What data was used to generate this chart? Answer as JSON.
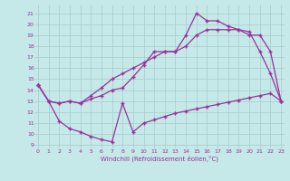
{
  "background_color": "#c5e8e8",
  "grid_color": "#a8cccc",
  "line_color": "#993399",
  "marker": "+",
  "xlabel": "Windchill (Refroidissement éolien,°C)",
  "ylim_min": 8.7,
  "ylim_max": 21.7,
  "xlim_min": -0.3,
  "xlim_max": 23.3,
  "ytick_vals": [
    9,
    10,
    11,
    12,
    13,
    14,
    15,
    16,
    17,
    18,
    19,
    20,
    21
  ],
  "xtick_vals": [
    0,
    1,
    2,
    3,
    4,
    5,
    6,
    7,
    8,
    9,
    10,
    11,
    12,
    13,
    14,
    15,
    16,
    17,
    18,
    19,
    20,
    21,
    22,
    23
  ],
  "line1_x": [
    0,
    1,
    2,
    3,
    4,
    5,
    6,
    7,
    8,
    9,
    10,
    11,
    12,
    13,
    14,
    15,
    16,
    17,
    18,
    19,
    20,
    21,
    22,
    23
  ],
  "line1_y": [
    14.5,
    13.0,
    11.2,
    10.5,
    10.2,
    9.8,
    9.5,
    9.3,
    12.8,
    10.2,
    11.0,
    11.3,
    11.6,
    11.9,
    12.1,
    12.3,
    12.5,
    12.7,
    12.9,
    13.1,
    13.3,
    13.5,
    13.7,
    13.0
  ],
  "line2_x": [
    0,
    1,
    2,
    3,
    4,
    5,
    6,
    7,
    8,
    9,
    10,
    11,
    12,
    13,
    14,
    15,
    16,
    17,
    18,
    19,
    20,
    21,
    22,
    23
  ],
  "line2_y": [
    14.5,
    13.0,
    12.8,
    13.0,
    12.8,
    13.2,
    13.5,
    14.0,
    14.2,
    15.2,
    16.3,
    17.5,
    17.5,
    17.5,
    19.0,
    21.0,
    20.3,
    20.3,
    19.8,
    19.5,
    19.3,
    17.5,
    15.5,
    13.0
  ],
  "line3_x": [
    0,
    1,
    2,
    3,
    4,
    5,
    6,
    7,
    8,
    9,
    10,
    11,
    12,
    13,
    14,
    15,
    16,
    17,
    18,
    19,
    20,
    21,
    22,
    23
  ],
  "line3_y": [
    14.5,
    13.0,
    12.8,
    13.0,
    12.8,
    13.5,
    14.2,
    15.0,
    15.5,
    16.0,
    16.5,
    17.0,
    17.5,
    17.5,
    18.0,
    19.0,
    19.5,
    19.5,
    19.5,
    19.5,
    19.0,
    19.0,
    17.5,
    13.0
  ]
}
